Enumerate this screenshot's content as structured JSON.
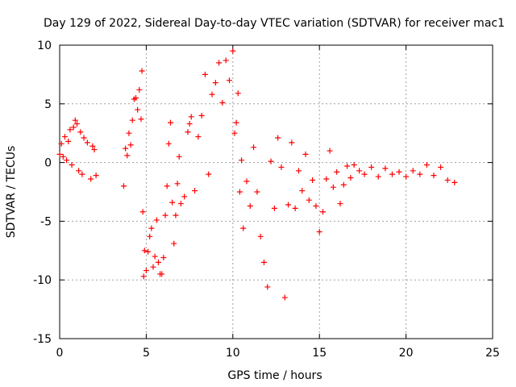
{
  "chart_data": {
    "type": "scatter",
    "title": "Day 129 of 2022, Sidereal Day-to-day VTEC variation (SDTVAR) for receiver mac1",
    "xlabel": "GPS time / hours",
    "ylabel": "SDTVAR / TECUs",
    "xlim": [
      0,
      25
    ],
    "ylim": [
      -15,
      10
    ],
    "xticks": [
      0,
      5,
      10,
      15,
      20,
      25
    ],
    "yticks": [
      -15,
      -10,
      -5,
      0,
      5,
      10
    ],
    "xtick_labels": [
      "0",
      "5",
      "10",
      "15",
      "20",
      "25"
    ],
    "ytick_labels": [
      "-15",
      "-10",
      "-5",
      "0",
      "5",
      "10"
    ],
    "grid": true,
    "marker": "+",
    "series": [
      {
        "name": "SDTVAR",
        "color": "#ff0000",
        "points": [
          [
            0.0,
            0.7
          ],
          [
            0.1,
            1.6
          ],
          [
            0.2,
            0.5
          ],
          [
            0.3,
            2.2
          ],
          [
            0.4,
            0.2
          ],
          [
            0.5,
            1.8
          ],
          [
            0.6,
            2.8
          ],
          [
            0.7,
            -0.2
          ],
          [
            0.8,
            3.0
          ],
          [
            0.9,
            3.6
          ],
          [
            1.0,
            3.3
          ],
          [
            1.1,
            -0.7
          ],
          [
            1.2,
            2.6
          ],
          [
            1.3,
            -1.0
          ],
          [
            1.4,
            2.1
          ],
          [
            1.6,
            1.7
          ],
          [
            1.8,
            -1.4
          ],
          [
            1.9,
            1.4
          ],
          [
            2.0,
            1.1
          ],
          [
            2.1,
            -1.1
          ],
          [
            3.7,
            -2.0
          ],
          [
            3.8,
            1.2
          ],
          [
            3.9,
            0.6
          ],
          [
            4.0,
            2.5
          ],
          [
            4.1,
            1.5
          ],
          [
            4.2,
            3.6
          ],
          [
            4.3,
            5.4
          ],
          [
            4.4,
            5.5
          ],
          [
            4.5,
            4.5
          ],
          [
            4.6,
            6.2
          ],
          [
            4.7,
            3.7
          ],
          [
            4.75,
            7.8
          ],
          [
            4.8,
            -4.2
          ],
          [
            4.85,
            -9.7
          ],
          [
            4.9,
            -7.5
          ],
          [
            5.0,
            -9.2
          ],
          [
            5.1,
            -7.6
          ],
          [
            5.2,
            -6.3
          ],
          [
            5.3,
            -5.6
          ],
          [
            5.4,
            -8.9
          ],
          [
            5.5,
            -8.0
          ],
          [
            5.6,
            -4.9
          ],
          [
            5.7,
            -8.5
          ],
          [
            5.8,
            -9.5
          ],
          [
            5.9,
            -9.5
          ],
          [
            6.0,
            -8.1
          ],
          [
            6.1,
            -4.5
          ],
          [
            6.2,
            -2.0
          ],
          [
            6.3,
            1.6
          ],
          [
            6.4,
            3.4
          ],
          [
            6.5,
            -3.4
          ],
          [
            6.6,
            -6.9
          ],
          [
            6.7,
            -4.5
          ],
          [
            6.8,
            -1.8
          ],
          [
            6.9,
            0.5
          ],
          [
            7.0,
            -3.5
          ],
          [
            7.2,
            -2.9
          ],
          [
            7.4,
            2.6
          ],
          [
            7.5,
            3.3
          ],
          [
            7.6,
            3.9
          ],
          [
            7.8,
            -2.4
          ],
          [
            8.0,
            2.2
          ],
          [
            8.2,
            4.0
          ],
          [
            8.4,
            7.5
          ],
          [
            8.6,
            -1.0
          ],
          [
            8.8,
            5.8
          ],
          [
            9.0,
            6.8
          ],
          [
            9.2,
            8.5
          ],
          [
            9.4,
            5.1
          ],
          [
            9.6,
            8.7
          ],
          [
            9.8,
            7.0
          ],
          [
            10.0,
            9.5
          ],
          [
            10.1,
            2.5
          ],
          [
            10.2,
            3.4
          ],
          [
            10.3,
            5.9
          ],
          [
            10.4,
            -2.5
          ],
          [
            10.5,
            0.2
          ],
          [
            10.6,
            -5.6
          ],
          [
            10.8,
            -1.6
          ],
          [
            11.0,
            -3.7
          ],
          [
            11.2,
            1.3
          ],
          [
            11.4,
            -2.5
          ],
          [
            11.6,
            -6.3
          ],
          [
            11.8,
            -8.5
          ],
          [
            12.0,
            -10.6
          ],
          [
            12.2,
            0.1
          ],
          [
            12.4,
            -3.9
          ],
          [
            12.6,
            2.1
          ],
          [
            12.8,
            -0.4
          ],
          [
            13.0,
            -11.5
          ],
          [
            13.2,
            -3.6
          ],
          [
            13.4,
            1.7
          ],
          [
            13.6,
            -3.9
          ],
          [
            13.8,
            -0.7
          ],
          [
            14.0,
            -2.4
          ],
          [
            14.2,
            0.7
          ],
          [
            14.4,
            -3.2
          ],
          [
            14.6,
            -1.5
          ],
          [
            14.8,
            -3.7
          ],
          [
            15.0,
            -5.9
          ],
          [
            15.2,
            -4.2
          ],
          [
            15.4,
            -1.4
          ],
          [
            15.6,
            1.0
          ],
          [
            15.8,
            -2.1
          ],
          [
            16.0,
            -0.8
          ],
          [
            16.2,
            -3.5
          ],
          [
            16.4,
            -1.9
          ],
          [
            16.6,
            -0.3
          ],
          [
            16.8,
            -1.3
          ],
          [
            17.0,
            -0.2
          ],
          [
            17.3,
            -0.7
          ],
          [
            17.6,
            -1.0
          ],
          [
            18.0,
            -0.4
          ],
          [
            18.4,
            -1.2
          ],
          [
            18.8,
            -0.5
          ],
          [
            19.2,
            -1.0
          ],
          [
            19.6,
            -0.8
          ],
          [
            20.0,
            -1.2
          ],
          [
            20.4,
            -0.7
          ],
          [
            20.8,
            -1.0
          ],
          [
            21.2,
            -0.2
          ],
          [
            21.6,
            -1.1
          ],
          [
            22.0,
            -0.4
          ],
          [
            22.4,
            -1.5
          ],
          [
            22.8,
            -1.7
          ]
        ]
      }
    ]
  }
}
